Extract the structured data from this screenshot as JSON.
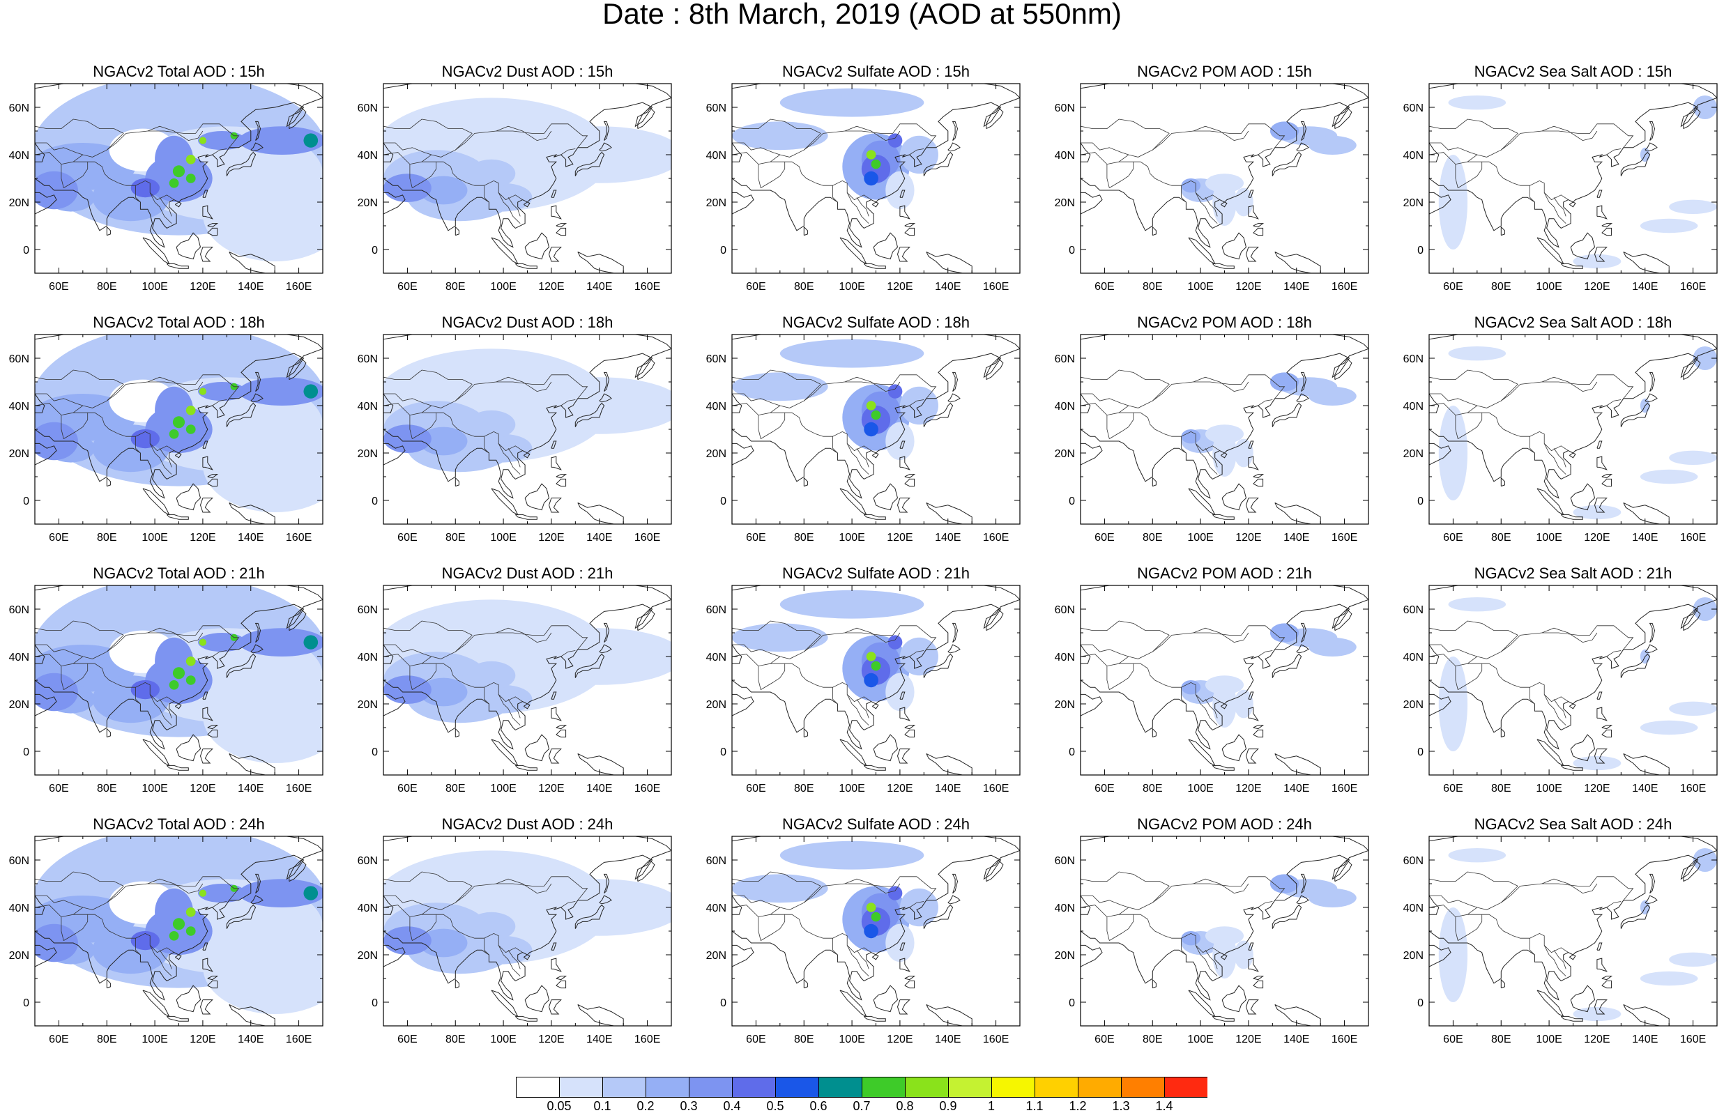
{
  "title": "Date : 8th March, 2019 (AOD at 550nm)",
  "axes": {
    "lon_ticks": [
      "60E",
      "80E",
      "100E",
      "120E",
      "140E",
      "160E"
    ],
    "lat_ticks": [
      "60N",
      "40N",
      "20N",
      "0"
    ]
  },
  "panels": [
    {
      "title": "NGACv2 Total AOD : 15h",
      "species": "total",
      "hour": "15h"
    },
    {
      "title": "NGACv2 Dust AOD : 15h",
      "species": "dust",
      "hour": "15h"
    },
    {
      "title": "NGACv2 Sulfate AOD : 15h",
      "species": "sulfate",
      "hour": "15h"
    },
    {
      "title": "NGACv2 POM AOD : 15h",
      "species": "pom",
      "hour": "15h"
    },
    {
      "title": "NGACv2 Sea Salt AOD : 15h",
      "species": "seasalt",
      "hour": "15h"
    },
    {
      "title": "NGACv2 Total AOD : 18h",
      "species": "total",
      "hour": "18h"
    },
    {
      "title": "NGACv2 Dust AOD : 18h",
      "species": "dust",
      "hour": "18h"
    },
    {
      "title": "NGACv2 Sulfate AOD : 18h",
      "species": "sulfate",
      "hour": "18h"
    },
    {
      "title": "NGACv2 POM AOD : 18h",
      "species": "pom",
      "hour": "18h"
    },
    {
      "title": "NGACv2 Sea Salt AOD : 18h",
      "species": "seasalt",
      "hour": "18h"
    },
    {
      "title": "NGACv2 Total AOD : 21h",
      "species": "total",
      "hour": "21h"
    },
    {
      "title": "NGACv2 Dust AOD : 21h",
      "species": "dust",
      "hour": "21h"
    },
    {
      "title": "NGACv2 Sulfate AOD : 21h",
      "species": "sulfate",
      "hour": "21h"
    },
    {
      "title": "NGACv2 POM AOD : 21h",
      "species": "pom",
      "hour": "21h"
    },
    {
      "title": "NGACv2 Sea Salt AOD : 21h",
      "species": "seasalt",
      "hour": "21h"
    },
    {
      "title": "NGACv2 Total AOD : 24h",
      "species": "total",
      "hour": "24h"
    },
    {
      "title": "NGACv2 Dust AOD : 24h",
      "species": "dust",
      "hour": "24h"
    },
    {
      "title": "NGACv2 Sulfate AOD : 24h",
      "species": "sulfate",
      "hour": "24h"
    },
    {
      "title": "NGACv2 POM AOD : 24h",
      "species": "pom",
      "hour": "24h"
    },
    {
      "title": "NGACv2 Sea Salt  AOD : 24h",
      "species": "seasalt",
      "hour": "24h"
    }
  ],
  "colorbar": {
    "labels": [
      "0.05",
      "0.1",
      "0.2",
      "0.3",
      "0.4",
      "0.5",
      "0.6",
      "0.7",
      "0.8",
      "0.9",
      "1",
      "1.1",
      "1.2",
      "1.3",
      "1.4"
    ],
    "colors": [
      "#ffffff",
      "#d6e2fb",
      "#b5c9f8",
      "#95aff5",
      "#7d94f1",
      "#5f6cea",
      "#1a57e8",
      "#008f8f",
      "#3ecb29",
      "#8ae21b",
      "#c5f231",
      "#f6f600",
      "#ffd000",
      "#ffab00",
      "#ff7f00",
      "#ff2a10"
    ]
  }
}
